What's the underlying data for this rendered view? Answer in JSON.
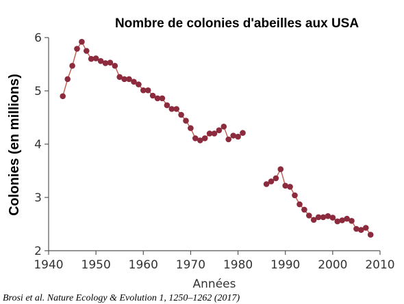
{
  "chart_data": {
    "type": "line",
    "title": "Nombre de colonies d'abeilles aux USA",
    "xlabel": "Années",
    "ylabel": "Colonies (en millions)",
    "source": "Brosi et al. Nature Ecology & Evolution 1, 1250–1262 (2017)",
    "xlim": [
      1940,
      2010
    ],
    "ylim": [
      2,
      6
    ],
    "x_ticks": [
      "1940",
      "1950",
      "1960",
      "1970",
      "1980",
      "1990",
      "2000",
      "2010"
    ],
    "y_ticks": [
      "2",
      "3",
      "4",
      "5",
      "6"
    ],
    "grid": false,
    "colors": {
      "series": "#8b2b3d",
      "line": "#c0584a"
    },
    "series": [
      {
        "points": [
          [
            1943,
            4.9
          ],
          [
            1944,
            5.22
          ],
          [
            1945,
            5.47
          ],
          [
            1946,
            5.79
          ],
          [
            1947,
            5.92
          ],
          [
            1948,
            5.75
          ],
          [
            1949,
            5.6
          ],
          [
            1950,
            5.61
          ],
          [
            1951,
            5.56
          ],
          [
            1952,
            5.52
          ],
          [
            1953,
            5.53
          ],
          [
            1954,
            5.47
          ],
          [
            1955,
            5.26
          ],
          [
            1956,
            5.22
          ],
          [
            1957,
            5.22
          ],
          [
            1958,
            5.17
          ],
          [
            1959,
            5.12
          ],
          [
            1960,
            5.01
          ],
          [
            1961,
            5.01
          ],
          [
            1962,
            4.91
          ],
          [
            1963,
            4.86
          ],
          [
            1964,
            4.86
          ],
          [
            1965,
            4.73
          ],
          [
            1966,
            4.66
          ],
          [
            1967,
            4.66
          ],
          [
            1968,
            4.55
          ],
          [
            1969,
            4.44
          ],
          [
            1970,
            4.3
          ],
          [
            1971,
            4.11
          ],
          [
            1972,
            4.07
          ],
          [
            1973,
            4.11
          ],
          [
            1974,
            4.2
          ],
          [
            1975,
            4.2
          ],
          [
            1976,
            4.26
          ],
          [
            1977,
            4.33
          ],
          [
            1978,
            4.09
          ],
          [
            1979,
            4.16
          ],
          [
            1980,
            4.14
          ],
          [
            1981,
            4.21
          ]
        ]
      },
      {
        "points": [
          [
            1986,
            3.25
          ],
          [
            1987,
            3.3
          ],
          [
            1988,
            3.36
          ],
          [
            1989,
            3.53
          ],
          [
            1990,
            3.22
          ],
          [
            1991,
            3.2
          ],
          [
            1992,
            3.04
          ],
          [
            1993,
            2.87
          ],
          [
            1994,
            2.77
          ],
          [
            1995,
            2.66
          ],
          [
            1996,
            2.58
          ],
          [
            1997,
            2.63
          ],
          [
            1998,
            2.63
          ],
          [
            1999,
            2.65
          ],
          [
            2000,
            2.62
          ],
          [
            2001,
            2.55
          ],
          [
            2002,
            2.57
          ],
          [
            2003,
            2.6
          ],
          [
            2004,
            2.56
          ],
          [
            2005,
            2.41
          ],
          [
            2006,
            2.39
          ],
          [
            2007,
            2.43
          ],
          [
            2008,
            2.3
          ]
        ]
      }
    ]
  }
}
